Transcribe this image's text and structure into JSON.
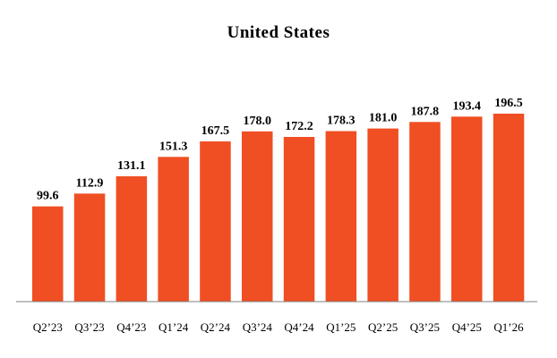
{
  "chart_data": {
    "type": "bar",
    "title": "United States",
    "categories": [
      "Q2’23",
      "Q3’23",
      "Q4’23",
      "Q1’24",
      "Q2’24",
      "Q3’24",
      "Q4’24",
      "Q1’25",
      "Q2’25",
      "Q3’25",
      "Q4’25",
      "Q1’26"
    ],
    "values": [
      99.6,
      112.9,
      131.1,
      151.3,
      167.5,
      178.0,
      172.2,
      178.3,
      181.0,
      187.8,
      193.4,
      196.5
    ],
    "value_labels": [
      "99.6",
      "112.9",
      "131.1",
      "151.3",
      "167.5",
      "178.0",
      "172.2",
      "178.3",
      "181.0",
      "187.8",
      "193.4",
      "196.5"
    ],
    "xlabel": "",
    "ylabel": "",
    "ylim": [
      0,
      196.5
    ],
    "grid": false,
    "legend": "none",
    "bar_color": "#F04E23",
    "axis_color": "#808080"
  }
}
